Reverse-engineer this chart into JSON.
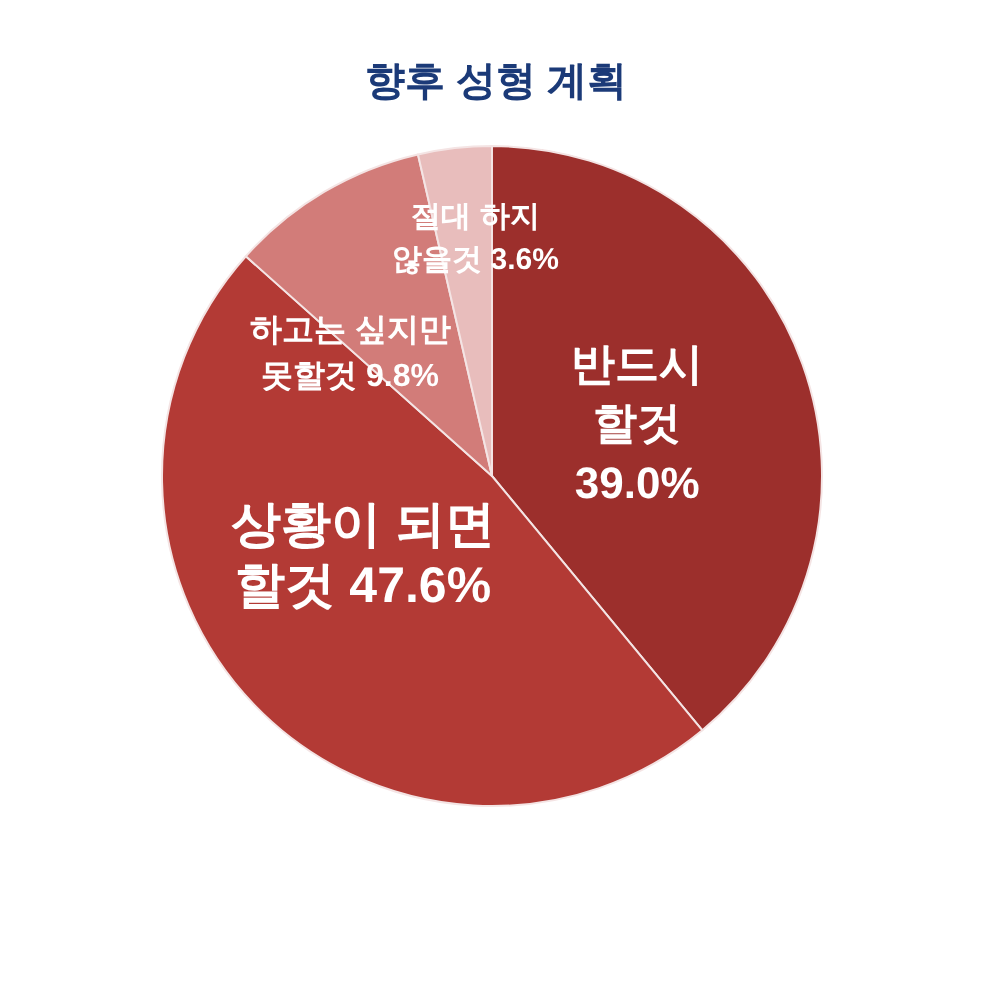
{
  "chart_data": {
    "type": "pie",
    "title": "향후 성형 계획",
    "categories": [
      "반드시 할것",
      "상황이 되면 할것",
      "하고는 싶지만 못할것",
      "절대 하지 않을것"
    ],
    "values": [
      39.0,
      47.6,
      9.8,
      3.6
    ],
    "value_labels": [
      "39.0%",
      "47.6%",
      "9.8%",
      "3.6%"
    ],
    "colors": [
      "#9c2f2c",
      "#b33a35",
      "#d27c79",
      "#e8bdbc"
    ]
  }
}
